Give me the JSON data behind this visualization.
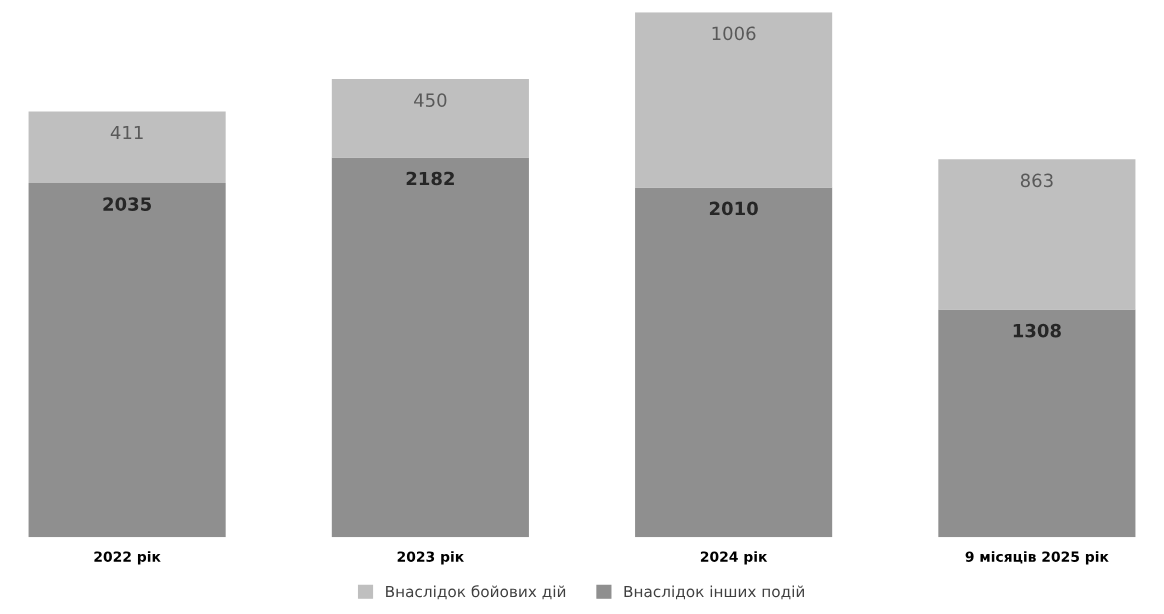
{
  "chart_data": {
    "type": "bar",
    "stacked": true,
    "categories": [
      "2022 рік",
      "2023 рік",
      "2024 рік",
      "9 місяців 2025 рік"
    ],
    "series": [
      {
        "name": "Внаслідок інших подій",
        "color": "#8f8f8f",
        "values": [
          2035,
          2182,
          2010,
          1308
        ]
      },
      {
        "name": "Внаслідок бойових дій",
        "color": "#bfbfbf",
        "values": [
          411,
          450,
          1006,
          863
        ]
      }
    ],
    "data_labels": true,
    "legend": "bottom",
    "grid": false
  }
}
